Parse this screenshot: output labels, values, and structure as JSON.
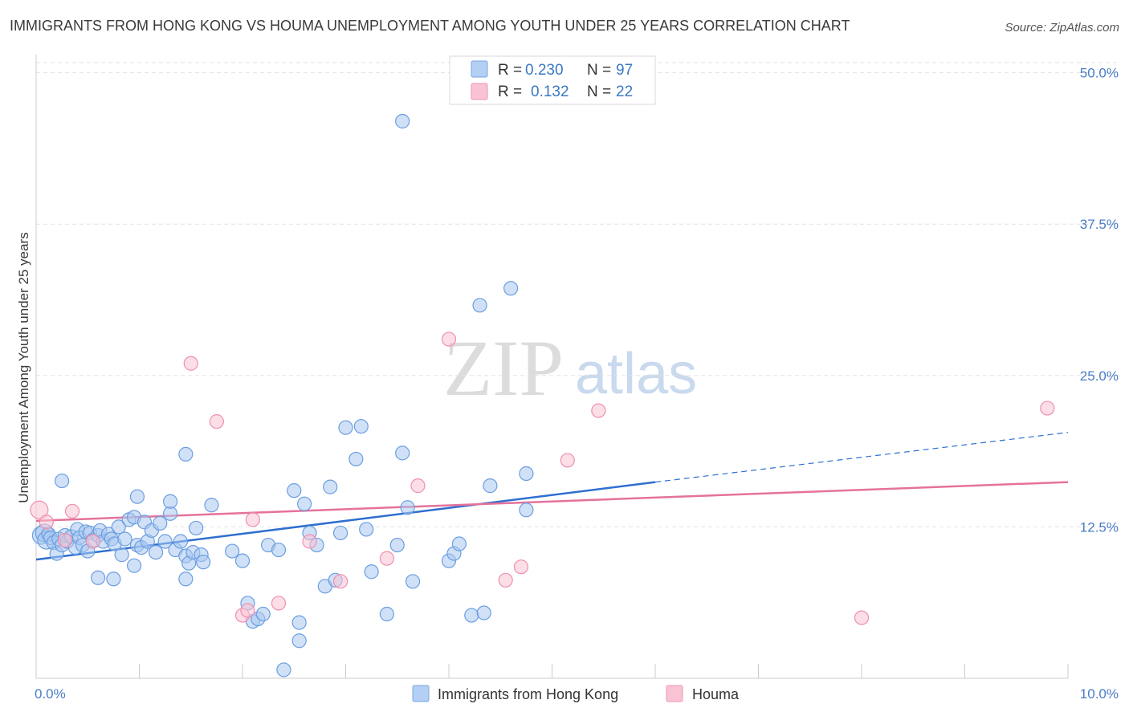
{
  "chart_data": {
    "type": "scatter",
    "title": "IMMIGRANTS FROM HONG KONG VS HOUMA UNEMPLOYMENT AMONG YOUTH UNDER 25 YEARS CORRELATION CHART",
    "source": "Source: ZipAtlas.com",
    "ylabel": "Unemployment Among Youth under 25 years",
    "watermark": {
      "zip": "ZIP",
      "atlas": "atlas"
    },
    "xlim": [
      0,
      10
    ],
    "ylim": [
      0,
      51.5
    ],
    "x_tick_labels": [
      {
        "value": 0,
        "label": "0.0%"
      },
      {
        "value": 10,
        "label": "10.0%"
      }
    ],
    "y_tick_labels": [
      {
        "value": 12.5,
        "label": "12.5%"
      },
      {
        "value": 25.0,
        "label": "25.0%"
      },
      {
        "value": 37.5,
        "label": "37.5%"
      },
      {
        "value": 50.0,
        "label": "50.0%"
      }
    ],
    "legend_top": [
      {
        "r_label": "R =",
        "r_value": "0.230",
        "n_label": "N =",
        "n_value": "97",
        "fill": "#b3cff3",
        "stroke": "#7aa7e0"
      },
      {
        "r_label": "R =",
        "r_value": "0.132",
        "n_label": "N =",
        "n_value": "22",
        "fill": "#f9c3d4",
        "stroke": "#ef95b2"
      }
    ],
    "series": [
      {
        "name": "Immigrants from Hong Kong",
        "fill": "#a9c9f1",
        "stroke": "#6b9ee0",
        "trend": {
          "x0": 0,
          "y0": 9.8,
          "x1": 6.0,
          "y1": 16.2,
          "dash_x1": 10.0,
          "dash_y1": 20.3,
          "color": "#2f6fd0"
        },
        "points": [
          [
            0.05,
            11.8
          ],
          [
            0.08,
            12.0
          ],
          [
            0.1,
            11.4
          ],
          [
            0.12,
            11.9
          ],
          [
            0.14,
            11.6
          ],
          [
            0.17,
            11.2
          ],
          [
            0.2,
            10.3
          ],
          [
            0.22,
            11.5
          ],
          [
            0.25,
            11.0
          ],
          [
            0.28,
            11.8
          ],
          [
            0.3,
            11.3
          ],
          [
            0.34,
            11.7
          ],
          [
            0.38,
            10.8
          ],
          [
            0.4,
            12.3
          ],
          [
            0.42,
            11.6
          ],
          [
            0.45,
            11.0
          ],
          [
            0.48,
            12.1
          ],
          [
            0.5,
            10.5
          ],
          [
            0.52,
            12.0
          ],
          [
            0.55,
            11.4
          ],
          [
            0.6,
            11.8
          ],
          [
            0.62,
            12.2
          ],
          [
            0.65,
            11.3
          ],
          [
            0.7,
            11.9
          ],
          [
            0.73,
            11.5
          ],
          [
            0.76,
            11.1
          ],
          [
            0.8,
            12.5
          ],
          [
            0.83,
            10.2
          ],
          [
            0.86,
            11.5
          ],
          [
            0.9,
            13.1
          ],
          [
            0.95,
            13.3
          ],
          [
            0.98,
            11.0
          ],
          [
            1.02,
            10.8
          ],
          [
            1.05,
            12.9
          ],
          [
            1.08,
            11.3
          ],
          [
            1.12,
            12.2
          ],
          [
            1.16,
            10.4
          ],
          [
            1.2,
            12.8
          ],
          [
            1.25,
            11.3
          ],
          [
            1.3,
            13.6
          ],
          [
            1.35,
            10.6
          ],
          [
            1.4,
            11.3
          ],
          [
            1.45,
            10.1
          ],
          [
            1.48,
            9.5
          ],
          [
            1.52,
            10.4
          ],
          [
            1.55,
            12.4
          ],
          [
            1.6,
            10.2
          ],
          [
            1.62,
            9.6
          ],
          [
            0.25,
            16.3
          ],
          [
            0.98,
            15.0
          ],
          [
            1.3,
            14.6
          ],
          [
            1.45,
            18.5
          ],
          [
            1.7,
            14.3
          ],
          [
            1.9,
            10.5
          ],
          [
            2.0,
            9.7
          ],
          [
            2.05,
            6.2
          ],
          [
            2.1,
            4.7
          ],
          [
            2.15,
            4.9
          ],
          [
            2.2,
            5.3
          ],
          [
            2.25,
            11.0
          ],
          [
            2.35,
            10.6
          ],
          [
            2.4,
            0.7
          ],
          [
            2.5,
            15.5
          ],
          [
            2.55,
            4.6
          ],
          [
            2.6,
            14.4
          ],
          [
            2.65,
            12.0
          ],
          [
            2.72,
            11.0
          ],
          [
            2.8,
            7.6
          ],
          [
            2.85,
            15.8
          ],
          [
            2.9,
            8.1
          ],
          [
            2.95,
            12.0
          ],
          [
            3.0,
            20.7
          ],
          [
            3.1,
            18.1
          ],
          [
            3.15,
            20.8
          ],
          [
            3.2,
            12.3
          ],
          [
            3.25,
            8.8
          ],
          [
            3.4,
            5.3
          ],
          [
            3.5,
            11.0
          ],
          [
            3.55,
            18.6
          ],
          [
            3.6,
            14.1
          ],
          [
            3.65,
            8.0
          ],
          [
            4.0,
            9.7
          ],
          [
            4.05,
            10.3
          ],
          [
            4.1,
            11.1
          ],
          [
            4.3,
            30.8
          ],
          [
            4.4,
            15.9
          ],
          [
            4.6,
            32.2
          ],
          [
            4.75,
            16.9
          ],
          [
            4.75,
            13.9
          ],
          [
            4.22,
            5.2
          ],
          [
            4.34,
            5.4
          ],
          [
            0.6,
            8.3
          ],
          [
            0.75,
            8.2
          ],
          [
            0.95,
            9.3
          ],
          [
            3.55,
            46.0
          ],
          [
            2.55,
            3.1
          ],
          [
            1.45,
            8.2
          ]
        ]
      },
      {
        "name": "Houma",
        "fill": "#f9c3d4",
        "stroke": "#ef8fae",
        "trend": {
          "x0": 0,
          "y0": 13.0,
          "x1": 10.0,
          "y1": 16.2,
          "color": "#e5729b"
        },
        "points": [
          [
            0.03,
            13.9
          ],
          [
            0.1,
            12.9
          ],
          [
            0.28,
            11.4
          ],
          [
            0.35,
            13.8
          ],
          [
            0.55,
            11.3
          ],
          [
            1.5,
            26.0
          ],
          [
            1.75,
            21.2
          ],
          [
            2.1,
            13.1
          ],
          [
            2.0,
            5.2
          ],
          [
            2.05,
            5.6
          ],
          [
            2.35,
            6.2
          ],
          [
            2.65,
            11.3
          ],
          [
            2.95,
            8.0
          ],
          [
            3.4,
            9.9
          ],
          [
            3.7,
            15.9
          ],
          [
            4.0,
            28.0
          ],
          [
            4.55,
            8.1
          ],
          [
            4.7,
            9.2
          ],
          [
            5.15,
            18.0
          ],
          [
            5.45,
            22.1
          ],
          [
            8.0,
            5.0
          ],
          [
            9.8,
            22.3
          ]
        ]
      }
    ]
  }
}
